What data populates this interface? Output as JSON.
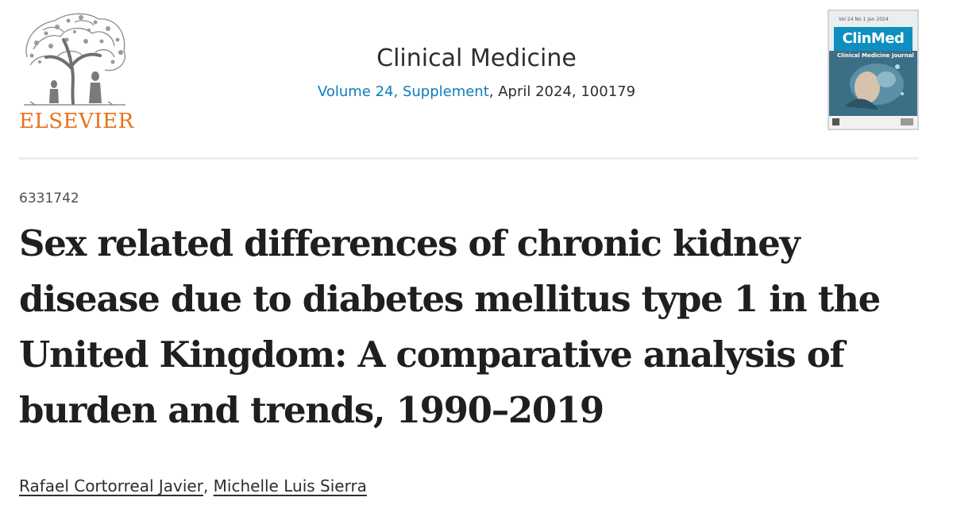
{
  "publisher": {
    "logo_text": "ELSEVIER",
    "logo_icon": "tree-of-knowledge-icon",
    "color": "#e9711c"
  },
  "journal": {
    "title": "Clinical Medicine",
    "volume_link": "Volume 24, Supplement",
    "issue_rest": ", April 2024, 100179",
    "link_color": "#0c7dbb"
  },
  "cover": {
    "brand": "ClinMed",
    "subtitle": "Clinical Medicine Journal",
    "volume": "Vol 24 No 1 Jan 2024",
    "accent": "#0f8fbf"
  },
  "article": {
    "id": "6331742",
    "title": "Sex related differences of chronic kidney disease due to diabetes mellitus type 1 in the United Kingdom: A comparative analysis of burden and trends, 1990–2019",
    "authors": [
      "Rafael Cortorreal Javier",
      "Michelle Luis Sierra"
    ],
    "author_separator": ", "
  }
}
